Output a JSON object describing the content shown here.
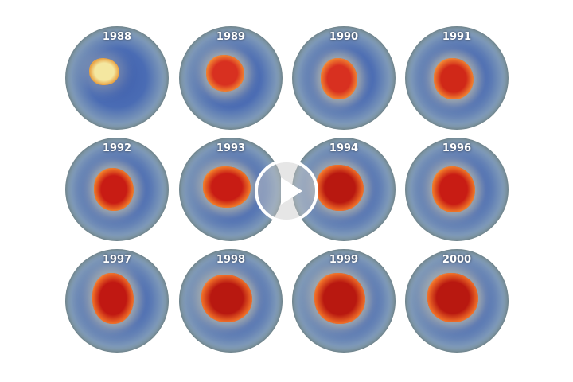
{
  "video": {
    "play_icon": "play-icon",
    "panels": [
      {
        "year": "1988"
      },
      {
        "year": "1989"
      },
      {
        "year": "1990"
      },
      {
        "year": "1991"
      },
      {
        "year": "1992"
      },
      {
        "year": "1993"
      },
      {
        "year": "1994"
      },
      {
        "year": "1996"
      },
      {
        "year": "1997"
      },
      {
        "year": "1998"
      },
      {
        "year": "1999"
      },
      {
        "year": "2000"
      }
    ]
  }
}
